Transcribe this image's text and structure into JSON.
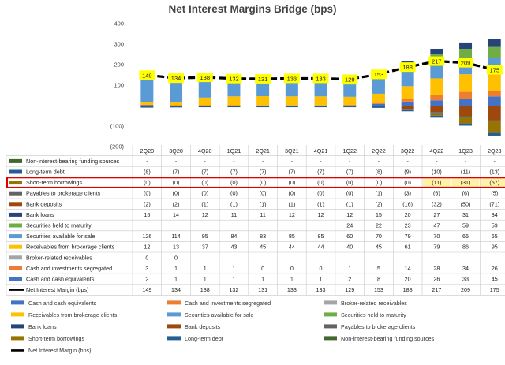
{
  "chart_data": {
    "type": "bar",
    "title": "Net Interest Margins Bridge (bps)",
    "xlabel": "",
    "ylabel": "",
    "ylim": [
      -200,
      400
    ],
    "yticks": [
      "400",
      "300",
      "200",
      "100",
      "-",
      "(100)",
      "(200)"
    ],
    "categories": [
      "2Q20",
      "3Q20",
      "4Q20",
      "1Q21",
      "2Q21",
      "3Q21",
      "4Q21",
      "1Q22",
      "2Q22",
      "3Q22",
      "4Q22",
      "1Q23",
      "2Q23"
    ],
    "series": [
      {
        "name": "Cash and cash equivalents",
        "color": "#4472C4",
        "values": [
          2,
          1,
          1,
          1,
          1,
          1,
          1,
          2,
          8,
          20,
          26,
          33,
          45
        ],
        "labels": [
          "2",
          "1",
          "1",
          "1",
          "1",
          "1",
          "1",
          "2",
          "8",
          "20",
          "26",
          "33",
          "45"
        ]
      },
      {
        "name": "Cash and investments segregated",
        "color": "#ED7D31",
        "values": [
          3,
          1,
          1,
          1,
          0,
          0,
          0,
          1,
          5,
          14,
          28,
          34,
          26
        ],
        "labels": [
          "3",
          "1",
          "1",
          "1",
          "0",
          "0",
          "0",
          "1",
          "5",
          "14",
          "28",
          "34",
          "26"
        ]
      },
      {
        "name": "Broker-related receivables",
        "color": "#A5A5A5",
        "values": [
          0,
          0,
          null,
          null,
          null,
          null,
          null,
          null,
          null,
          null,
          null,
          null,
          null
        ],
        "labels": [
          "0",
          "0",
          "",
          "",
          "",
          "",
          "",
          "",
          "",
          "",
          "",
          "",
          ""
        ]
      },
      {
        "name": "Receivables from brokerage clients",
        "color": "#FFC000",
        "values": [
          12,
          13,
          37,
          43,
          45,
          44,
          44,
          40,
          45,
          61,
          79,
          86,
          95
        ],
        "labels": [
          "12",
          "13",
          "37",
          "43",
          "45",
          "44",
          "44",
          "40",
          "45",
          "61",
          "79",
          "86",
          "95"
        ]
      },
      {
        "name": "Securities available for sale",
        "color": "#5B9BD5",
        "values": [
          126,
          114,
          95,
          84,
          83,
          85,
          85,
          60,
          70,
          79,
          70,
          65,
          65
        ],
        "labels": [
          "126",
          "114",
          "95",
          "84",
          "83",
          "85",
          "85",
          "60",
          "70",
          "79",
          "70",
          "65",
          "65"
        ]
      },
      {
        "name": "Securities held to maturity",
        "color": "#70AD47",
        "values": [
          null,
          null,
          null,
          null,
          null,
          null,
          null,
          24,
          22,
          23,
          47,
          59,
          59
        ],
        "labels": [
          "",
          "",
          "",
          "",
          "",
          "",
          "",
          "24",
          "22",
          "23",
          "47",
          "59",
          "59"
        ]
      },
      {
        "name": "Bank loans",
        "color": "#264478",
        "values": [
          15,
          14,
          12,
          11,
          11,
          12,
          12,
          12,
          15,
          20,
          27,
          31,
          34
        ],
        "labels": [
          "15",
          "14",
          "12",
          "11",
          "11",
          "12",
          "12",
          "12",
          "15",
          "20",
          "27",
          "31",
          "34"
        ]
      },
      {
        "name": "Bank deposits",
        "color": "#9E480E",
        "values": [
          -2,
          -2,
          -1,
          -1,
          -1,
          -1,
          -1,
          -1,
          -2,
          -16,
          -32,
          -50,
          -71
        ],
        "labels": [
          "(2)",
          "(2)",
          "(1)",
          "(1)",
          "(1)",
          "(1)",
          "(1)",
          "(1)",
          "(2)",
          "(16)",
          "(32)",
          "(50)",
          "(71)"
        ]
      },
      {
        "name": "Payables to brokerage clients",
        "color": "#636363",
        "values": [
          0,
          0,
          0,
          0,
          0,
          0,
          0,
          0,
          -1,
          -3,
          -6,
          -6,
          -5
        ],
        "labels": [
          "(0)",
          "(0)",
          "(0)",
          "(0)",
          "(0)",
          "(0)",
          "(0)",
          "(0)",
          "(1)",
          "(3)",
          "(6)",
          "(6)",
          "(5)"
        ]
      },
      {
        "name": "Short-term borrowings",
        "color": "#997300",
        "values": [
          0,
          0,
          0,
          0,
          0,
          0,
          0,
          0,
          0,
          0,
          -11,
          -31,
          -57
        ],
        "labels": [
          "(0)",
          "(0)",
          "(0)",
          "(0)",
          "(0)",
          "(0)",
          "(0)",
          "(0)",
          "(0)",
          "(0)",
          "(11)",
          "(31)",
          "(57)"
        ]
      },
      {
        "name": "Long-term debt",
        "color": "#255E91",
        "values": [
          -8,
          -7,
          -7,
          -7,
          -7,
          -7,
          -7,
          -7,
          -8,
          -9,
          -10,
          -11,
          -13
        ],
        "labels": [
          "(8)",
          "(7)",
          "(7)",
          "(7)",
          "(7)",
          "(7)",
          "(7)",
          "(7)",
          "(8)",
          "(9)",
          "(10)",
          "(11)",
          "(13)"
        ]
      },
      {
        "name": "Non-interest-bearing funding sources",
        "color": "#43682B",
        "values": [
          null,
          null,
          null,
          null,
          null,
          null,
          null,
          null,
          null,
          null,
          null,
          null,
          null
        ],
        "labels": [
          "-",
          "-",
          "-",
          "-",
          "-",
          "-",
          "-",
          "-",
          "-",
          "-",
          "-",
          "-",
          "-"
        ]
      }
    ],
    "net_interest_margin": {
      "name": "Net Interest Margin (bps)",
      "color": "#000000",
      "values": [
        149,
        134,
        138,
        132,
        131,
        133,
        133,
        129,
        153,
        188,
        217,
        209,
        175
      ]
    },
    "table_row_order": [
      "Non-interest-bearing funding sources",
      "Long-term debt",
      "Short-term borrowings",
      "Payables to brokerage clients",
      "Bank deposits",
      "Bank loans",
      "Securities held to maturity",
      "Securities available for sale",
      "Receivables from brokerage clients",
      "Broker-related receivables",
      "Cash and investments segregated",
      "Cash and cash equivalents",
      "Net Interest Margin (bps)"
    ],
    "highlighted_row": "Short-term borrowings",
    "highlight_color": "#E00000",
    "label_bg_color": "#FFFF00",
    "legend_placement": "bottom",
    "grid": false
  }
}
